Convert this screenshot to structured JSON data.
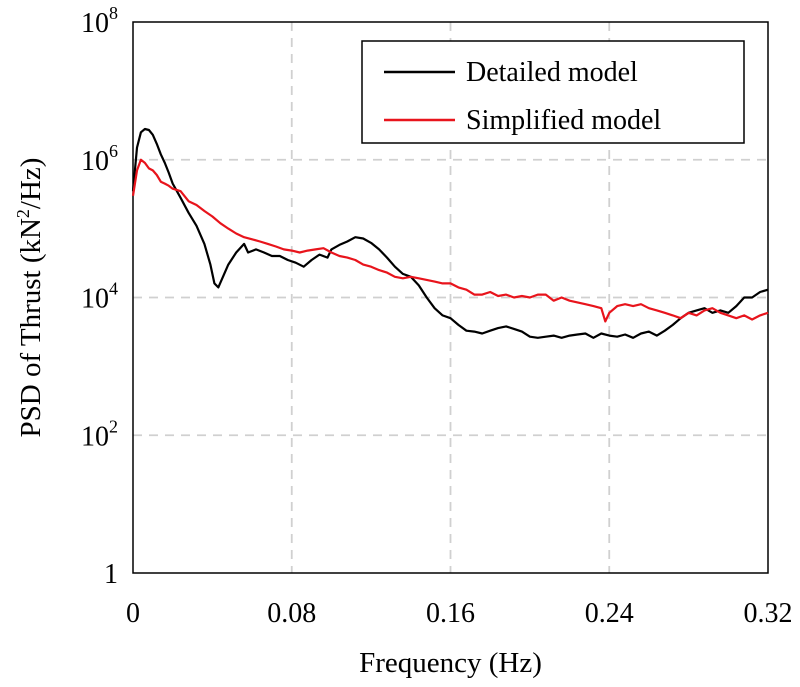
{
  "chart_data": {
    "type": "line",
    "xlabel": "Frequency (Hz)",
    "ylabel": {
      "prefix": "PSD of Thrust (kN",
      "sup": "2",
      "suffix": "/Hz)"
    },
    "xlim": [
      0,
      0.32
    ],
    "ylim": [
      1,
      100000000
    ],
    "yscale": "log",
    "grid": true,
    "legend_position": "top-right",
    "x_ticks": [
      {
        "value": 0,
        "label": "0"
      },
      {
        "value": 0.08,
        "label": "0.08"
      },
      {
        "value": 0.16,
        "label": "0.16"
      },
      {
        "value": 0.24,
        "label": "0.24"
      },
      {
        "value": 0.32,
        "label": "0.32"
      }
    ],
    "y_ticks": [
      {
        "value": 1,
        "label": "1",
        "base": "",
        "exp": ""
      },
      {
        "value": 100,
        "label": "",
        "base": "10",
        "exp": "2"
      },
      {
        "value": 10000,
        "label": "",
        "base": "10",
        "exp": "4"
      },
      {
        "value": 1000000,
        "label": "",
        "base": "10",
        "exp": "6"
      },
      {
        "value": 100000000,
        "label": "",
        "base": "10",
        "exp": "8"
      }
    ],
    "series": [
      {
        "name": "Detailed model",
        "color": "#000000",
        "x": [
          0,
          0.002,
          0.004,
          0.006,
          0.008,
          0.01,
          0.012,
          0.014,
          0.016,
          0.018,
          0.02,
          0.024,
          0.028,
          0.032,
          0.036,
          0.039,
          0.041,
          0.043,
          0.045,
          0.048,
          0.052,
          0.056,
          0.058,
          0.062,
          0.066,
          0.07,
          0.074,
          0.078,
          0.082,
          0.086,
          0.09,
          0.094,
          0.098,
          0.1,
          0.104,
          0.108,
          0.112,
          0.116,
          0.12,
          0.124,
          0.128,
          0.132,
          0.136,
          0.14,
          0.144,
          0.148,
          0.152,
          0.156,
          0.16,
          0.164,
          0.168,
          0.172,
          0.176,
          0.18,
          0.184,
          0.188,
          0.192,
          0.196,
          0.2,
          0.204,
          0.208,
          0.212,
          0.216,
          0.22,
          0.224,
          0.228,
          0.232,
          0.236,
          0.24,
          0.244,
          0.248,
          0.252,
          0.256,
          0.26,
          0.264,
          0.268,
          0.272,
          0.276,
          0.28,
          0.284,
          0.288,
          0.292,
          0.296,
          0.3,
          0.304,
          0.308,
          0.312,
          0.316,
          0.32
        ],
        "y": [
          350000,
          1500000,
          2500000,
          2800000,
          2700000,
          2300000,
          1700000,
          1200000,
          900000,
          650000,
          450000,
          280000,
          170000,
          110000,
          60000,
          30000,
          16000,
          14000,
          19000,
          30000,
          45000,
          60000,
          45000,
          50000,
          45000,
          40000,
          40000,
          35000,
          32000,
          28000,
          35000,
          42000,
          38000,
          50000,
          58000,
          65000,
          75000,
          72000,
          62000,
          50000,
          38000,
          28000,
          22000,
          20000,
          15000,
          10000,
          7000,
          5500,
          5000,
          4000,
          3300,
          3200,
          3000,
          3300,
          3600,
          3800,
          3500,
          3200,
          2700,
          2600,
          2700,
          2800,
          2600,
          2800,
          2900,
          3000,
          2600,
          3000,
          2800,
          2700,
          2900,
          2600,
          3000,
          3200,
          2800,
          3300,
          4000,
          5000,
          6000,
          6500,
          7000,
          6000,
          6500,
          6000,
          7500,
          10000,
          10000,
          12000,
          13000
        ]
      },
      {
        "name": "Simplified model",
        "color": "#e8141c",
        "x": [
          0,
          0.002,
          0.004,
          0.006,
          0.008,
          0.01,
          0.012,
          0.014,
          0.016,
          0.018,
          0.02,
          0.024,
          0.028,
          0.032,
          0.036,
          0.04,
          0.044,
          0.048,
          0.052,
          0.056,
          0.06,
          0.064,
          0.068,
          0.072,
          0.076,
          0.08,
          0.084,
          0.088,
          0.092,
          0.096,
          0.1,
          0.104,
          0.108,
          0.112,
          0.116,
          0.12,
          0.124,
          0.128,
          0.132,
          0.136,
          0.14,
          0.144,
          0.148,
          0.152,
          0.156,
          0.16,
          0.164,
          0.168,
          0.172,
          0.176,
          0.18,
          0.184,
          0.188,
          0.192,
          0.196,
          0.2,
          0.204,
          0.208,
          0.212,
          0.216,
          0.22,
          0.224,
          0.228,
          0.232,
          0.236,
          0.238,
          0.24,
          0.244,
          0.248,
          0.252,
          0.256,
          0.26,
          0.264,
          0.268,
          0.272,
          0.276,
          0.28,
          0.284,
          0.288,
          0.292,
          0.296,
          0.3,
          0.304,
          0.308,
          0.312,
          0.316,
          0.32
        ],
        "y": [
          300000,
          700000,
          1000000,
          900000,
          750000,
          700000,
          600000,
          480000,
          450000,
          420000,
          380000,
          350000,
          250000,
          220000,
          180000,
          150000,
          120000,
          100000,
          85000,
          75000,
          70000,
          65000,
          60000,
          55000,
          50000,
          48000,
          45000,
          48000,
          50000,
          52000,
          45000,
          40000,
          38000,
          35000,
          30000,
          28000,
          25000,
          23000,
          20000,
          19000,
          20000,
          19000,
          18000,
          17000,
          16000,
          16000,
          14000,
          13000,
          11000,
          11000,
          12000,
          10500,
          11000,
          10000,
          10500,
          10000,
          11000,
          11000,
          9000,
          10000,
          9000,
          8500,
          8000,
          7500,
          7000,
          4500,
          6000,
          7500,
          8000,
          7500,
          8000,
          7000,
          6500,
          6000,
          5500,
          5000,
          6000,
          5500,
          6500,
          7000,
          6000,
          5500,
          5000,
          5500,
          4800,
          5500,
          6000
        ]
      }
    ]
  }
}
